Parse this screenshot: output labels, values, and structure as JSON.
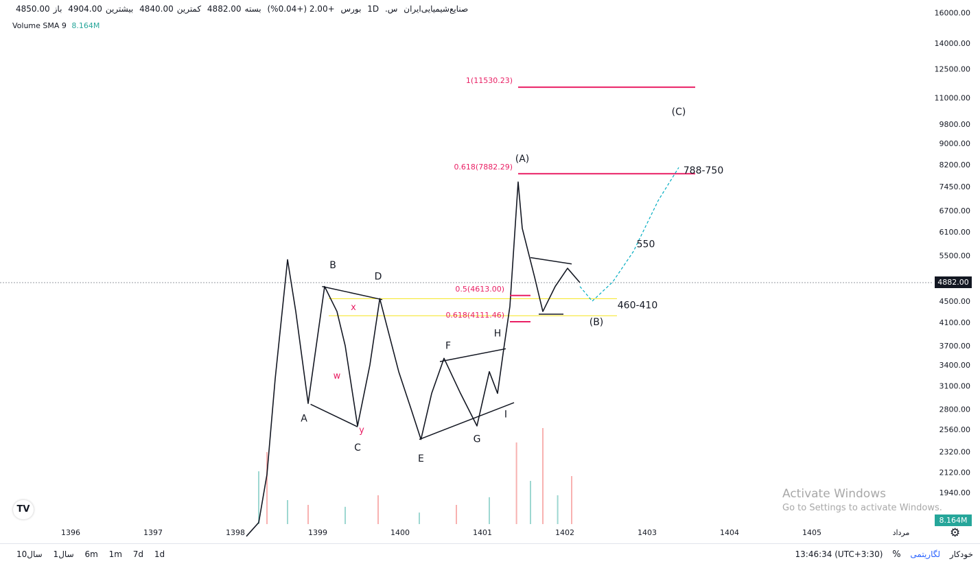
{
  "header": {
    "symbol": "صنایع‌شیمیایی‌ایران",
    "symbol_suffix": "س.",
    "interval": "1D",
    "exchange": "بورس",
    "open_label": "باز",
    "open": "4850.00",
    "high_label": "بیشترین",
    "high": "4904.00",
    "low_label": "کمترین",
    "low": "4840.00",
    "close_label": "بسته",
    "close": "4882.00",
    "change": "+2.00 (+0.04%)"
  },
  "volume": {
    "label": "Volume SMA 9",
    "value": "8.164M"
  },
  "price_badge": "4882.00",
  "volume_badge": "8.164M",
  "watermark": {
    "title": "Activate Windows",
    "subtitle": "Go to Settings to activate Windows."
  },
  "logo_text": "TV",
  "range_buttons": [
    "10سال",
    "1سال",
    "6m",
    "1m",
    "7d",
    "1d"
  ],
  "bottom_bar": {
    "clock": "13:46:34 (UTC+3:30)",
    "percent": "%",
    "log": "لگاریتمی",
    "auto": "خودکار"
  },
  "icons": {
    "settings": "gear-icon"
  },
  "colors": {
    "fib": "#e91e63",
    "zone": "#f5e41a",
    "forecast": "#00acc1",
    "volume_up": "#26a69a",
    "volume_down": "#ef5350"
  },
  "chart_data": {
    "type": "candlestick",
    "log_scale": true,
    "x_axis_labels": [
      "1396",
      "1397",
      "1398",
      "1399",
      "1400",
      "1401",
      "1402",
      "1403",
      "1404",
      "1405",
      "مرداد"
    ],
    "y_axis_ticks": [
      "16000.00",
      "14000.00",
      "12500.00",
      "11000.00",
      "9800.00",
      "9000.00",
      "8200.00",
      "7450.00",
      "6700.00",
      "6100.00",
      "5500.00",
      "4500.00",
      "4100.00",
      "3700.00",
      "3400.00",
      "3100.00",
      "2800.00",
      "2560.00",
      "2320.00",
      "2120.00",
      "1940.00"
    ],
    "last_price": 4882.0,
    "price_path": [
      {
        "x": 1398.0,
        "y": 1600
      },
      {
        "x": 1398.15,
        "y": 1700
      },
      {
        "x": 1398.25,
        "y": 2100
      },
      {
        "x": 1398.35,
        "y": 3200
      },
      {
        "x": 1398.5,
        "y": 5400
      },
      {
        "x": 1398.6,
        "y": 4300
      },
      {
        "x": 1398.75,
        "y": 2870
      },
      {
        "x": 1398.95,
        "y": 4800
      },
      {
        "x": 1399.1,
        "y": 4300
      },
      {
        "x": 1399.2,
        "y": 3700
      },
      {
        "x": 1399.35,
        "y": 2600
      },
      {
        "x": 1399.5,
        "y": 3400
      },
      {
        "x": 1399.62,
        "y": 4550
      },
      {
        "x": 1399.85,
        "y": 3300
      },
      {
        "x": 1400.0,
        "y": 2800
      },
      {
        "x": 1400.12,
        "y": 2450
      },
      {
        "x": 1400.25,
        "y": 3000
      },
      {
        "x": 1400.4,
        "y": 3500
      },
      {
        "x": 1400.6,
        "y": 3000
      },
      {
        "x": 1400.8,
        "y": 2600
      },
      {
        "x": 1400.95,
        "y": 3300
      },
      {
        "x": 1401.05,
        "y": 3000
      },
      {
        "x": 1401.12,
        "y": 3600
      },
      {
        "x": 1401.2,
        "y": 4400
      },
      {
        "x": 1401.3,
        "y": 7600
      },
      {
        "x": 1401.35,
        "y": 6200
      },
      {
        "x": 1401.5,
        "y": 5000
      },
      {
        "x": 1401.6,
        "y": 4300
      },
      {
        "x": 1401.75,
        "y": 4800
      },
      {
        "x": 1401.9,
        "y": 5200
      },
      {
        "x": 1402.05,
        "y": 4882
      }
    ],
    "volume_bars": [
      {
        "x": 1398.15,
        "v": 0.55
      },
      {
        "x": 1398.25,
        "v": 0.75
      },
      {
        "x": 1398.5,
        "v": 0.25
      },
      {
        "x": 1398.75,
        "v": 0.2
      },
      {
        "x": 1399.2,
        "v": 0.18
      },
      {
        "x": 1399.6,
        "v": 0.3
      },
      {
        "x": 1400.1,
        "v": 0.12
      },
      {
        "x": 1400.55,
        "v": 0.2
      },
      {
        "x": 1400.95,
        "v": 0.28
      },
      {
        "x": 1401.28,
        "v": 0.85
      },
      {
        "x": 1401.45,
        "v": 0.45
      },
      {
        "x": 1401.6,
        "v": 1.0
      },
      {
        "x": 1401.78,
        "v": 0.3
      },
      {
        "x": 1401.95,
        "v": 0.5
      }
    ],
    "fib_levels": [
      {
        "label": "1(11530.23)",
        "price": 11530.23
      },
      {
        "label": "0.618(7882.29)",
        "price": 7882.29
      },
      {
        "label": "0.5(4613.00)",
        "price": 4613.0
      },
      {
        "label": "0.618(4111.46)",
        "price": 4111.46
      }
    ],
    "zone_lines": [
      4550,
      4220
    ],
    "trend_lines": [
      {
        "x1": 1398.78,
        "y1": 2860,
        "x2": 1399.35,
        "y2": 2590
      },
      {
        "x1": 1398.92,
        "y1": 4800,
        "x2": 1399.65,
        "y2": 4530
      },
      {
        "x1": 1400.1,
        "y1": 2450,
        "x2": 1401.25,
        "y2": 2880
      },
      {
        "x1": 1400.35,
        "y1": 3450,
        "x2": 1401.15,
        "y2": 3650
      },
      {
        "x1": 1401.45,
        "y1": 5450,
        "x2": 1401.95,
        "y2": 5300
      },
      {
        "x1": 1401.55,
        "y1": 4250,
        "x2": 1401.85,
        "y2": 4250
      }
    ],
    "forecast_path": [
      {
        "x": 1402.05,
        "y": 4800
      },
      {
        "x": 1402.2,
        "y": 4500
      },
      {
        "x": 1402.45,
        "y": 4900
      },
      {
        "x": 1402.7,
        "y": 5600
      },
      {
        "x": 1403.0,
        "y": 7000
      },
      {
        "x": 1403.25,
        "y": 8100
      }
    ],
    "annotations": [
      {
        "text": "A",
        "x": 1398.7,
        "y": 2650
      },
      {
        "text": "B",
        "x": 1399.05,
        "y": 5200
      },
      {
        "text": "C",
        "x": 1399.35,
        "y": 2330
      },
      {
        "text": "D",
        "x": 1399.6,
        "y": 4950
      },
      {
        "text": "E",
        "x": 1400.12,
        "y": 2220
      },
      {
        "text": "F",
        "x": 1400.45,
        "y": 3650
      },
      {
        "text": "G",
        "x": 1400.8,
        "y": 2420
      },
      {
        "text": "H",
        "x": 1401.05,
        "y": 3850
      },
      {
        "text": "I",
        "x": 1401.15,
        "y": 2700
      },
      {
        "text": "x",
        "x": 1399.3,
        "y": 4330
      },
      {
        "text": "w",
        "x": 1399.1,
        "y": 3200
      },
      {
        "text": "y",
        "x": 1399.4,
        "y": 2520
      },
      {
        "text": "(A)",
        "x": 1401.35,
        "y": 8300
      },
      {
        "text": "(B)",
        "x": 1402.25,
        "y": 4050
      },
      {
        "text": "(C)",
        "x": 1403.25,
        "y": 10200
      },
      {
        "text": "788-750",
        "x": 1403.55,
        "y": 7882
      },
      {
        "text": "550",
        "x": 1402.85,
        "y": 5700
      },
      {
        "text": "460-410",
        "x": 1402.75,
        "y": 4360
      }
    ]
  }
}
